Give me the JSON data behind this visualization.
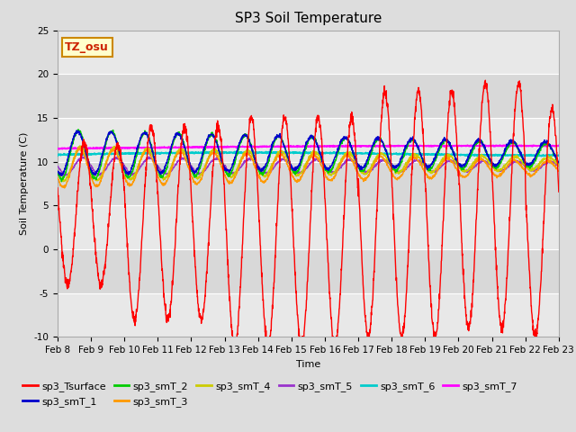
{
  "title": "SP3 Soil Temperature",
  "xlabel": "Time",
  "ylabel": "Soil Temperature (C)",
  "ylim": [
    -10,
    25
  ],
  "x_tick_labels": [
    "Feb 8",
    "Feb 9",
    "Feb 10",
    "Feb 11",
    "Feb 12",
    "Feb 13",
    "Feb 14",
    "Feb 15",
    "Feb 16",
    "Feb 17",
    "Feb 18",
    "Feb 19",
    "Feb 20",
    "Feb 21",
    "Feb 22",
    "Feb 23"
  ],
  "annotation_text": "TZ_osu",
  "annotation_bg": "#ffffcc",
  "annotation_border": "#cc8800",
  "annotation_text_color": "#cc2200",
  "series_colors": {
    "sp3_Tsurface": "#ff0000",
    "sp3_smT_1": "#0000cc",
    "sp3_smT_2": "#00cc00",
    "sp3_smT_3": "#ff9900",
    "sp3_smT_4": "#cccc00",
    "sp3_smT_5": "#9933cc",
    "sp3_smT_6": "#00cccc",
    "sp3_smT_7": "#ff00ff"
  },
  "band_colors": [
    "#e8e8e8",
    "#d8d8d8"
  ],
  "grid_color": "#ffffff",
  "title_fontsize": 11,
  "axis_label_fontsize": 8,
  "tick_fontsize": 7.5,
  "legend_fontsize": 8,
  "n_days": 15,
  "pts_per_day": 144
}
